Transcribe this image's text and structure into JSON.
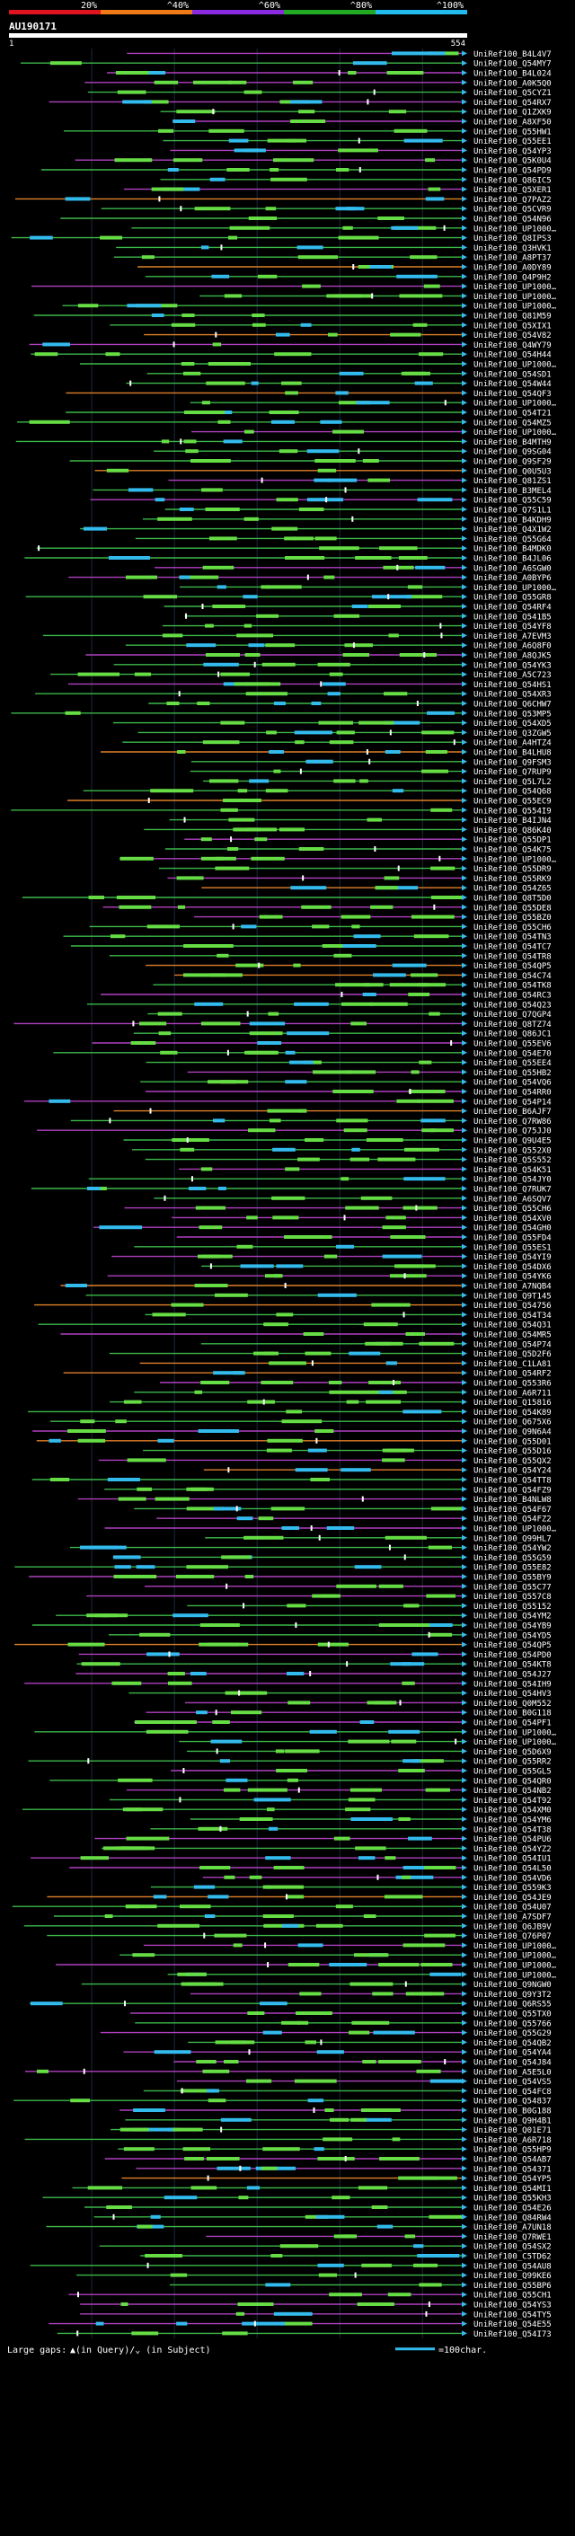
{
  "scale": {
    "labels": [
      "20%",
      "^40%",
      "^60%",
      "^80%",
      "^100%"
    ],
    "colors": [
      "#e0141e",
      "#f07a16",
      "#8a2be2",
      "#22aa22",
      "#22bbee"
    ]
  },
  "query": {
    "id": "AU190171",
    "start_label": "1",
    "end_label": "554"
  },
  "hits": [
    {
      "id": "UniRef100_B4L4V7",
      "color": "#3cb84a"
    },
    {
      "id": "UniRef100_Q54MY7",
      "color": "#3cb84a"
    },
    {
      "id": "UniRef100_B4L024",
      "color": "#3cb84a"
    },
    {
      "id": "UniRef100_A0K5Q0",
      "color": "#3cb84a"
    },
    {
      "id": "UniRef100_Q5CYZ1",
      "color": "#3cb84a"
    },
    {
      "id": "UniRef100_Q54RX7",
      "color": "#3cb84a"
    },
    {
      "id": "UniRef100_Q1ZXK9",
      "color": "#3cb84a"
    },
    {
      "id": "UniRef100_A8XF50",
      "color": "#3cb84a"
    },
    {
      "id": "UniRef100_Q55HW1",
      "color": "#3cb84a"
    },
    {
      "id": "UniRef100_Q55EE1",
      "color": "#3cb84a"
    },
    {
      "id": "UniRef100_Q54YP3",
      "color": "#3cb84a"
    },
    {
      "id": "UniRef100_Q5K0U4",
      "color": "#3cb84a"
    },
    {
      "id": "UniRef100_Q54PD9",
      "color": "#3cb84a"
    },
    {
      "id": "UniRef100_Q86IC5",
      "color": "#3cb84a"
    },
    {
      "id": "UniRef100_Q5XER1",
      "color": "#3cb84a"
    },
    {
      "id": "UniRef100_Q7PAZ2",
      "color": "#3cb84a"
    },
    {
      "id": "UniRef100_Q5CVR9",
      "color": "#3cb84a"
    },
    {
      "id": "UniRef100_Q54N96",
      "color": "#3cb84a"
    },
    {
      "id": "UniRef100_UP1000…",
      "color": "#3cb84a"
    },
    {
      "id": "UniRef100_Q8IPS3",
      "color": "#3cb84a"
    },
    {
      "id": "UniRef100_Q3HVK1",
      "color": "#3cb84a"
    },
    {
      "id": "UniRef100_A8PT37",
      "color": "#3cb84a"
    },
    {
      "id": "UniRef100_A0DY89",
      "color": "#3cb84a"
    },
    {
      "id": "UniRef100_Q4P9H2",
      "color": "#3cb84a"
    },
    {
      "id": "UniRef100_UP1000…",
      "color": "#3cb84a"
    },
    {
      "id": "UniRef100_UP1000…",
      "color": "#3cb84a"
    },
    {
      "id": "UniRef100_UP1000…",
      "color": "#3cb84a"
    },
    {
      "id": "UniRef100_Q81M59",
      "color": "#3cb84a"
    },
    {
      "id": "UniRef100_Q5XIX1",
      "color": "#3cb84a"
    },
    {
      "id": "UniRef100_Q54V82",
      "color": "#3cb84a"
    },
    {
      "id": "UniRef100_Q4WY79",
      "color": "#3cb84a"
    },
    {
      "id": "UniRef100_Q54H44",
      "color": "#3cb84a"
    },
    {
      "id": "UniRef100_UP1000…",
      "color": "#3cb84a"
    },
    {
      "id": "UniRef100_Q54SD1",
      "color": "#3cb84a"
    },
    {
      "id": "UniRef100_Q54W44",
      "color": "#3cb84a"
    },
    {
      "id": "UniRef100_Q54QF3",
      "color": "#3cb84a"
    },
    {
      "id": "UniRef100_UP1000…",
      "color": "#3cb84a"
    },
    {
      "id": "UniRef100_Q54T21",
      "color": "#3cb84a"
    },
    {
      "id": "UniRef100_Q54MZ5",
      "color": "#3cb84a"
    },
    {
      "id": "UniRef100_UP1000…",
      "color": "#3cb84a"
    },
    {
      "id": "UniRef100_B4MTH9",
      "color": "#3cb84a"
    },
    {
      "id": "UniRef100_Q9SG04",
      "color": "#3cb84a"
    },
    {
      "id": "UniRef100_Q9SF29",
      "color": "#3cb84a"
    },
    {
      "id": "UniRef100_Q0U5U3",
      "color": "#3cb84a"
    },
    {
      "id": "UniRef100_Q81ZS1",
      "color": "#3cb84a"
    },
    {
      "id": "UniRef100_B3MEL4",
      "color": "#3cb84a"
    },
    {
      "id": "UniRef100_Q55C59",
      "color": "#3cb84a"
    },
    {
      "id": "UniRef100_Q7S1L1",
      "color": "#3cb84a"
    },
    {
      "id": "UniRef100_B4KDH9",
      "color": "#3cb84a"
    },
    {
      "id": "UniRef100_Q4X1W2",
      "color": "#3cb84a"
    },
    {
      "id": "UniRef100_Q55G64",
      "color": "#3cb84a"
    },
    {
      "id": "UniRef100_B4MDK0",
      "color": "#3cb84a"
    },
    {
      "id": "UniRef100_B4JL06",
      "color": "#3cb84a"
    },
    {
      "id": "UniRef100_A6SGW0",
      "color": "#3cb84a"
    },
    {
      "id": "UniRef100_A0BYP6",
      "color": "#3cb84a"
    },
    {
      "id": "UniRef100_UP1000…",
      "color": "#3cb84a"
    },
    {
      "id": "UniRef100_Q55GR8",
      "color": "#3cb84a"
    },
    {
      "id": "UniRef100_Q54RF4",
      "color": "#3cb84a"
    },
    {
      "id": "UniRef100_Q541B5",
      "color": "#3cb84a"
    },
    {
      "id": "UniRef100_Q54YF8",
      "color": "#3cb84a"
    },
    {
      "id": "UniRef100_A7EVM3",
      "color": "#3cb84a"
    },
    {
      "id": "UniRef100_A6Q8F0",
      "color": "#3cb84a"
    },
    {
      "id": "UniRef100_A8QJK5",
      "color": "#3cb84a"
    },
    {
      "id": "UniRef100_Q54YK3",
      "color": "#3cb84a"
    },
    {
      "id": "UniRef100_A5C723",
      "color": "#3cb84a"
    },
    {
      "id": "UniRef100_Q54HS1",
      "color": "#3cb84a"
    },
    {
      "id": "UniRef100_Q54XR3",
      "color": "#3cb84a"
    },
    {
      "id": "UniRef100_Q6CHW7",
      "color": "#3cb84a"
    },
    {
      "id": "UniRef100_Q53MP5",
      "color": "#3cb84a"
    },
    {
      "id": "UniRef100_Q54XD5",
      "color": "#3cb84a"
    },
    {
      "id": "UniRef100_Q3ZGW5",
      "color": "#3cb84a"
    },
    {
      "id": "UniRef100_A4HTZ4",
      "color": "#3cb84a"
    },
    {
      "id": "UniRef100_B4LHU8",
      "color": "#3cb84a"
    },
    {
      "id": "UniRef100_Q9FSM3",
      "color": "#3cb84a"
    },
    {
      "id": "UniRef100_Q7RUP9",
      "color": "#3cb84a"
    },
    {
      "id": "UniRef100_Q5L7L2",
      "color": "#3cb84a"
    },
    {
      "id": "UniRef100_Q54Q68",
      "color": "#3cb84a"
    },
    {
      "id": "UniRef100_Q55EC9",
      "color": "#3cb84a"
    },
    {
      "id": "UniRef100_Q554I9",
      "color": "#3cb84a"
    },
    {
      "id": "UniRef100_B4IJN4",
      "color": "#3cb84a"
    },
    {
      "id": "UniRef100_Q86K40",
      "color": "#3cb84a"
    },
    {
      "id": "UniRef100_Q55DP1",
      "color": "#3cb84a"
    },
    {
      "id": "UniRef100_Q54K75",
      "color": "#3cb84a"
    },
    {
      "id": "UniRef100_UP1000…",
      "color": "#3cb84a"
    },
    {
      "id": "UniRef100_Q55DR9",
      "color": "#3cb84a"
    },
    {
      "id": "UniRef100_Q55RK9",
      "color": "#3cb84a"
    },
    {
      "id": "UniRef100_Q54Z65",
      "color": "#3cb84a"
    },
    {
      "id": "UniRef100_Q8T5D0",
      "color": "#3cb84a"
    },
    {
      "id": "UniRef100_Q55DE8",
      "color": "#3cb84a"
    },
    {
      "id": "UniRef100_Q55BZ0",
      "color": "#3cb84a"
    },
    {
      "id": "UniRef100_Q55CH6",
      "color": "#3cb84a"
    },
    {
      "id": "UniRef100_Q54TN3",
      "color": "#3cb84a"
    },
    {
      "id": "UniRef100_Q54TC7",
      "color": "#3cb84a"
    },
    {
      "id": "UniRef100_Q54TR8",
      "color": "#3cb84a"
    },
    {
      "id": "UniRef100_Q54QP5",
      "color": "#3cb84a"
    },
    {
      "id": "UniRef100_Q54C74",
      "color": "#3cb84a"
    },
    {
      "id": "UniRef100_Q54TK8",
      "color": "#3cb84a"
    },
    {
      "id": "UniRef100_Q54RC3",
      "color": "#3cb84a"
    },
    {
      "id": "UniRef100_Q54Q23",
      "color": "#3cb84a"
    },
    {
      "id": "UniRef100_Q7QGP4",
      "color": "#3cb84a"
    },
    {
      "id": "UniRef100_Q8TZ74",
      "color": "#3cb84a"
    },
    {
      "id": "UniRef100_Q86JC1",
      "color": "#3cb84a"
    },
    {
      "id": "UniRef100_Q55EV6",
      "color": "#3cb84a"
    },
    {
      "id": "UniRef100_Q54E70",
      "color": "#3cb84a"
    },
    {
      "id": "UniRef100_Q55EE4",
      "color": "#3cb84a"
    },
    {
      "id": "UniRef100_Q55HB2",
      "color": "#3cb84a"
    },
    {
      "id": "UniRef100_Q54VQ6",
      "color": "#3cb84a"
    },
    {
      "id": "UniRef100_Q54RR0",
      "color": "#3cb84a"
    },
    {
      "id": "UniRef100_Q54P14",
      "color": "#3cb84a"
    },
    {
      "id": "UniRef100_B6AJF7",
      "color": "#3cb84a"
    },
    {
      "id": "UniRef100_Q7RW86",
      "color": "#3cb84a"
    },
    {
      "id": "UniRef100_Q75JJ0",
      "color": "#3cb84a"
    },
    {
      "id": "UniRef100_Q9U4E5",
      "color": "#3cb84a"
    },
    {
      "id": "UniRef100_Q552X0",
      "color": "#3cb84a"
    },
    {
      "id": "UniRef100_Q5S552",
      "color": "#3cb84a"
    },
    {
      "id": "UniRef100_Q54K51",
      "color": "#3cb84a"
    },
    {
      "id": "UniRef100_Q54JY0",
      "color": "#3cb84a"
    },
    {
      "id": "UniRef100_Q7RUK7",
      "color": "#3cb84a"
    },
    {
      "id": "UniRef100_A6SQV7",
      "color": "#3cb84a"
    },
    {
      "id": "UniRef100_Q55CH6",
      "color": "#3cb84a"
    },
    {
      "id": "UniRef100_Q54XV0",
      "color": "#3cb84a"
    },
    {
      "id": "UniRef100_Q54GH0",
      "color": "#3cb84a"
    },
    {
      "id": "UniRef100_Q55FD4",
      "color": "#3cb84a"
    },
    {
      "id": "UniRef100_Q55ES1",
      "color": "#3cb84a"
    },
    {
      "id": "UniRef100_Q54YI9",
      "color": "#3cb84a"
    },
    {
      "id": "UniRef100_Q54DX6",
      "color": "#3cb84a"
    },
    {
      "id": "UniRef100_Q54YK6",
      "color": "#3cb84a"
    },
    {
      "id": "UniRef100_A7NQB4",
      "color": "#3cb84a"
    },
    {
      "id": "UniRef100_Q9T145",
      "color": "#3cb84a"
    },
    {
      "id": "UniRef100_Q54756",
      "color": "#3cb84a"
    },
    {
      "id": "UniRef100_Q54T34",
      "color": "#3cb84a"
    },
    {
      "id": "UniRef100_Q54Q31",
      "color": "#3cb84a"
    },
    {
      "id": "UniRef100_Q54MR5",
      "color": "#3cb84a"
    },
    {
      "id": "UniRef100_Q54P74",
      "color": "#3cb84a"
    },
    {
      "id": "UniRef100_Q5D2F6",
      "color": "#3cb84a"
    },
    {
      "id": "UniRef100_C1LA81",
      "color": "#3cb84a"
    },
    {
      "id": "UniRef100_Q54RF2",
      "color": "#3cb84a"
    },
    {
      "id": "UniRef100_Q553R6",
      "color": "#3cb84a"
    },
    {
      "id": "UniRef100_A6R711",
      "color": "#3cb84a"
    },
    {
      "id": "UniRef100_Q15816",
      "color": "#3cb84a"
    },
    {
      "id": "UniRef100_Q54K89",
      "color": "#3cb84a"
    },
    {
      "id": "UniRef100_Q675X6",
      "color": "#3cb84a"
    },
    {
      "id": "UniRef100_Q9N6A4",
      "color": "#3cb84a"
    },
    {
      "id": "UniRef100_Q55D01",
      "color": "#3cb84a"
    },
    {
      "id": "UniRef100_Q55D16",
      "color": "#3cb84a"
    },
    {
      "id": "UniRef100_Q55QX2",
      "color": "#3cb84a"
    },
    {
      "id": "UniRef100_Q54Y24",
      "color": "#3cb84a"
    },
    {
      "id": "UniRef100_Q54TT8",
      "color": "#3cb84a"
    },
    {
      "id": "UniRef100_Q54FZ9",
      "color": "#3cb84a"
    },
    {
      "id": "UniRef100_B4NLW8",
      "color": "#3cb84a"
    },
    {
      "id": "UniRef100_Q54F67",
      "color": "#3cb84a"
    },
    {
      "id": "UniRef100_Q54FZ2",
      "color": "#3cb84a"
    },
    {
      "id": "UniRef100_UP1000…",
      "color": "#3cb84a"
    },
    {
      "id": "UniRef100_Q99HL7",
      "color": "#3cb84a"
    },
    {
      "id": "UniRef100_Q54YW2",
      "color": "#3cb84a"
    },
    {
      "id": "UniRef100_Q55G59",
      "color": "#3cb84a"
    },
    {
      "id": "UniRef100_Q55E82",
      "color": "#3cb84a"
    },
    {
      "id": "UniRef100_Q55BY9",
      "color": "#3cb84a"
    },
    {
      "id": "UniRef100_Q55C77",
      "color": "#3cb84a"
    },
    {
      "id": "UniRef100_Q557C8",
      "color": "#3cb84a"
    },
    {
      "id": "UniRef100_Q55152",
      "color": "#3cb84a"
    },
    {
      "id": "UniRef100_Q54YM2",
      "color": "#3cb84a"
    },
    {
      "id": "UniRef100_Q54YB9",
      "color": "#3cb84a"
    },
    {
      "id": "UniRef100_Q54YD5",
      "color": "#3cb84a"
    },
    {
      "id": "UniRef100_Q54QP5",
      "color": "#3cb84a"
    },
    {
      "id": "UniRef100_Q54PD0",
      "color": "#3cb84a"
    },
    {
      "id": "UniRef100_Q54KT8",
      "color": "#3cb84a"
    },
    {
      "id": "UniRef100_Q54J27",
      "color": "#3cb84a"
    },
    {
      "id": "UniRef100_Q54IH9",
      "color": "#3cb84a"
    },
    {
      "id": "UniRef100_Q54HV3",
      "color": "#3cb84a"
    },
    {
      "id": "UniRef100_Q0M552",
      "color": "#3cb84a"
    },
    {
      "id": "UniRef100_B0G118",
      "color": "#3cb84a"
    },
    {
      "id": "UniRef100_Q54PF1",
      "color": "#3cb84a"
    },
    {
      "id": "UniRef100_UP1000…",
      "color": "#3cb84a"
    },
    {
      "id": "UniRef100_UP1000…",
      "color": "#3cb84a"
    },
    {
      "id": "UniRef100_Q5D6X9",
      "color": "#3cb84a"
    },
    {
      "id": "UniRef100_Q55RR2",
      "color": "#3cb84a"
    },
    {
      "id": "UniRef100_Q55GL5",
      "color": "#3cb84a"
    },
    {
      "id": "UniRef100_Q54QR0",
      "color": "#3cb84a"
    },
    {
      "id": "UniRef100_Q54NB2",
      "color": "#3cb84a"
    },
    {
      "id": "UniRef100_Q54T92",
      "color": "#3cb84a"
    },
    {
      "id": "UniRef100_Q54XM0",
      "color": "#3cb84a"
    },
    {
      "id": "UniRef100_Q54YM6",
      "color": "#3cb84a"
    },
    {
      "id": "UniRef100_Q54T38",
      "color": "#3cb84a"
    },
    {
      "id": "UniRef100_Q54PU6",
      "color": "#3cb84a"
    },
    {
      "id": "UniRef100_Q54YZ2",
      "color": "#3cb84a"
    },
    {
      "id": "UniRef100_Q54IU1",
      "color": "#3cb84a"
    },
    {
      "id": "UniRef100_Q54L50",
      "color": "#3cb84a"
    },
    {
      "id": "UniRef100_Q54VD6",
      "color": "#3cb84a"
    },
    {
      "id": "UniRef100_Q559K3",
      "color": "#3cb84a"
    },
    {
      "id": "UniRef100_Q54JE9",
      "color": "#3cb84a"
    },
    {
      "id": "UniRef100_Q54U07",
      "color": "#3cb84a"
    },
    {
      "id": "UniRef100_A7SDF7",
      "color": "#3cb84a"
    },
    {
      "id": "UniRef100_Q6JB9V",
      "color": "#3cb84a"
    },
    {
      "id": "UniRef100_Q76P07",
      "color": "#3cb84a"
    },
    {
      "id": "UniRef100_UP1000…",
      "color": "#3cb84a"
    },
    {
      "id": "UniRef100_UP1000…",
      "color": "#3cb84a"
    },
    {
      "id": "UniRef100_UP1000…",
      "color": "#3cb84a"
    },
    {
      "id": "UniRef100_UP1000…",
      "color": "#3cb84a"
    },
    {
      "id": "UniRef100_Q9NGW0",
      "color": "#3cb84a"
    },
    {
      "id": "UniRef100_Q9Y3T2",
      "color": "#3cb84a"
    },
    {
      "id": "UniRef100_Q6RS55",
      "color": "#3cb84a"
    },
    {
      "id": "UniRef100_Q55TX0",
      "color": "#3cb84a"
    },
    {
      "id": "UniRef100_Q55766",
      "color": "#3cb84a"
    },
    {
      "id": "UniRef100_Q55G29",
      "color": "#3cb84a"
    },
    {
      "id": "UniRef100_Q54QB2",
      "color": "#3cb84a"
    },
    {
      "id": "UniRef100_Q54YA4",
      "color": "#3cb84a"
    },
    {
      "id": "UniRef100_Q54J84",
      "color": "#3cb84a"
    },
    {
      "id": "UniRef100_A5E5L0",
      "color": "#3cb84a"
    },
    {
      "id": "UniRef100_Q54VS5",
      "color": "#3cb84a"
    },
    {
      "id": "UniRef100_Q54FC8",
      "color": "#3cb84a"
    },
    {
      "id": "UniRef100_Q54837",
      "color": "#3cb84a"
    },
    {
      "id": "UniRef100_B0G188",
      "color": "#3cb84a"
    },
    {
      "id": "UniRef100_Q9H4B1",
      "color": "#3cb84a"
    },
    {
      "id": "UniRef100_Q01E71",
      "color": "#3cb84a"
    },
    {
      "id": "UniRef100_A6R718",
      "color": "#3cb84a"
    },
    {
      "id": "UniRef100_Q55HP9",
      "color": "#3cb84a"
    },
    {
      "id": "UniRef100_Q54AB7",
      "color": "#3cb84a"
    },
    {
      "id": "UniRef100_Q54371",
      "color": "#3cb84a"
    },
    {
      "id": "UniRef100_Q54YP5",
      "color": "#3cb84a"
    },
    {
      "id": "UniRef100_Q54MI1",
      "color": "#3cb84a"
    },
    {
      "id": "UniRef100_Q55KH3",
      "color": "#3cb84a"
    },
    {
      "id": "UniRef100_Q54E26",
      "color": "#3cb84a"
    },
    {
      "id": "UniRef100_Q84RW4",
      "color": "#3cb84a"
    },
    {
      "id": "UniRef100_A7UN18",
      "color": "#3cb84a"
    },
    {
      "id": "UniRef100_Q7RWE1",
      "color": "#3cb84a"
    },
    {
      "id": "UniRef100_Q54SX2",
      "color": "#3cb84a"
    },
    {
      "id": "UniRef100_C5TD62",
      "color": "#3cb84a"
    },
    {
      "id": "UniRef100_Q54AU8",
      "color": "#3cb84a"
    },
    {
      "id": "UniRef100_Q99KE6",
      "color": "#3cb84a"
    },
    {
      "id": "UniRef100_Q55BP6",
      "color": "#3cb84a"
    },
    {
      "id": "UniRef100_Q55CH1",
      "color": "#3cb84a"
    },
    {
      "id": "UniRef100_Q54YS3",
      "color": "#3cb84a"
    },
    {
      "id": "UniRef100_Q54TY5",
      "color": "#3cb84a"
    },
    {
      "id": "UniRef100_Q54E55",
      "color": "#3cb84a"
    },
    {
      "id": "UniRef100_Q54I73",
      "color": "#3cb84a"
    }
  ],
  "footer": {
    "large_gaps_label": "Large gaps:",
    "gaps_legend": "▲(in Query)/⌄ (in Subject)",
    "scale_legend": "=100char."
  }
}
